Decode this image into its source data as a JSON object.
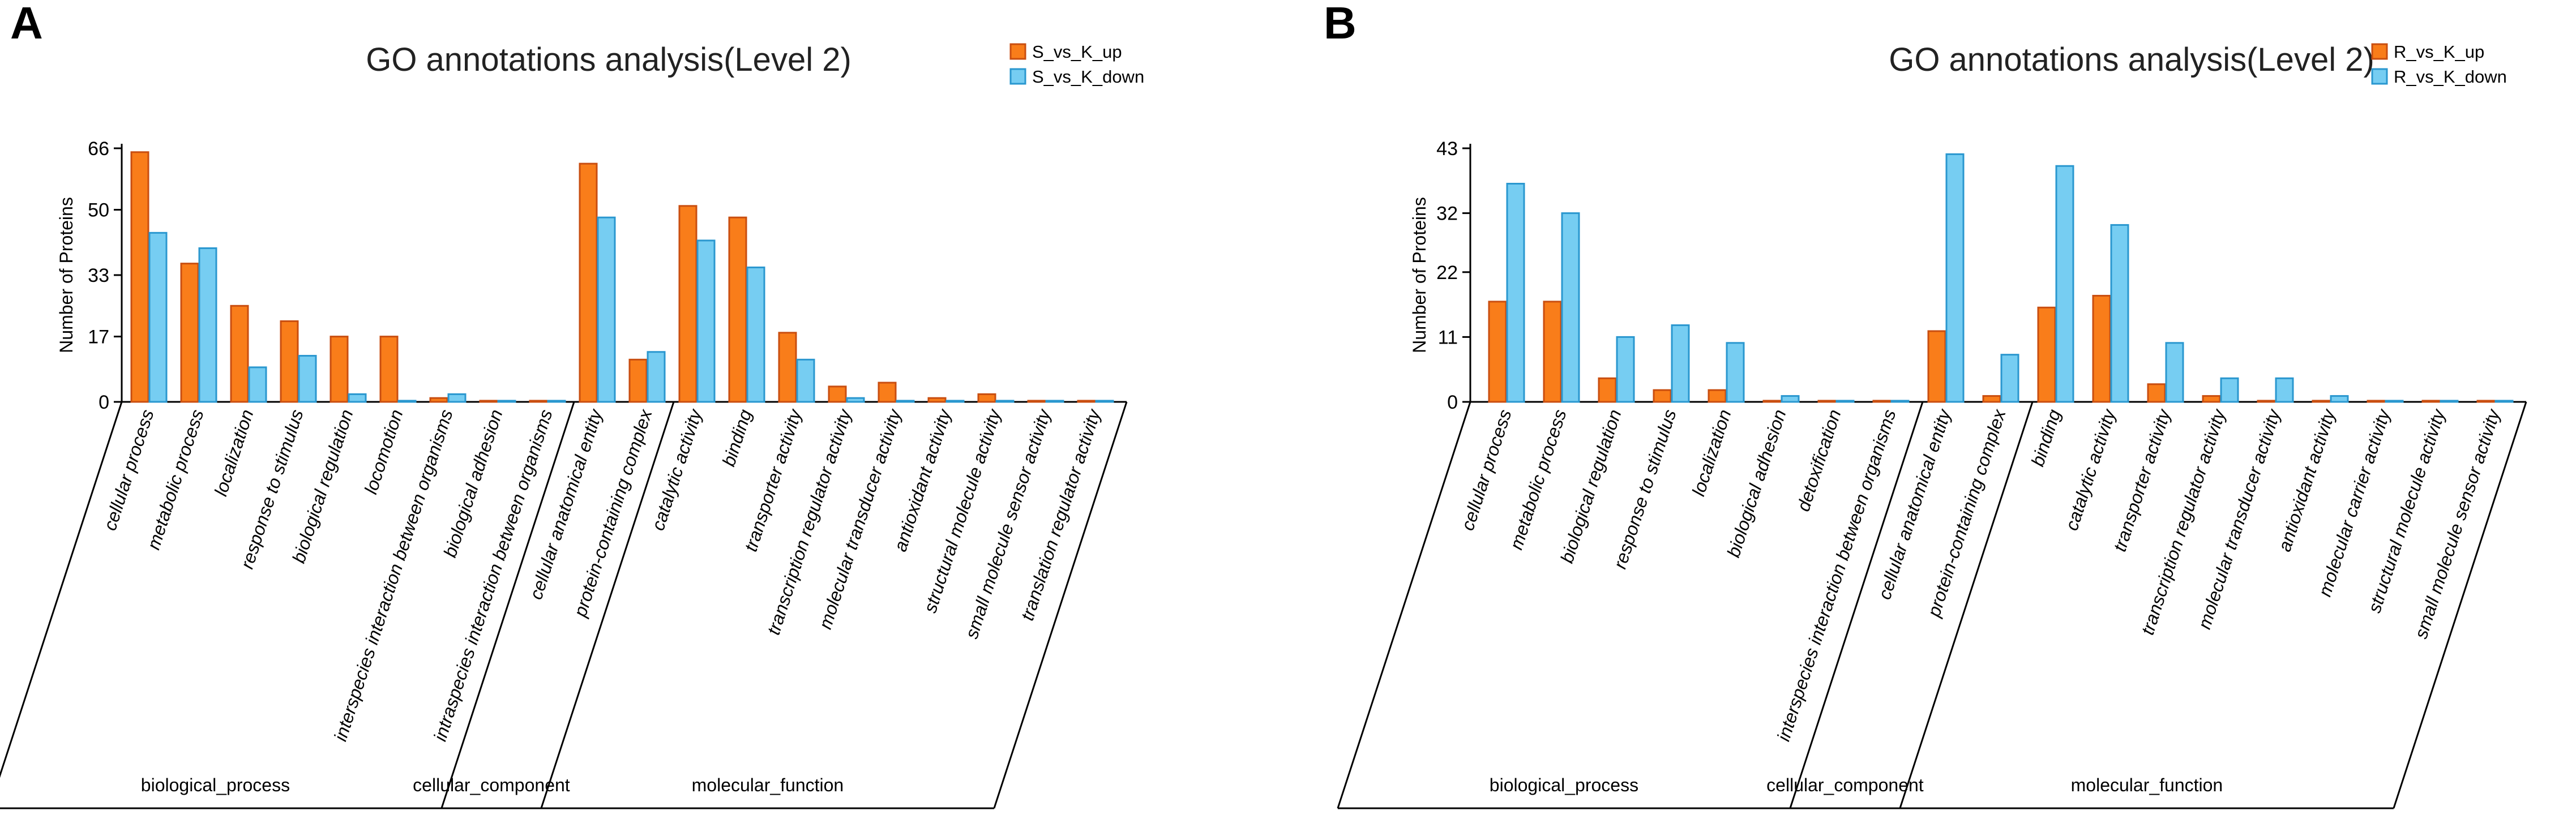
{
  "colors": {
    "up": "#f97d1a",
    "up_stroke": "#c94e10",
    "down": "#76cdf2",
    "down_stroke": "#2a97cf"
  },
  "chart_data": [
    {
      "type": "bar",
      "panel": "A",
      "title": "GO annotations analysis(Level 2)",
      "ylabel": "Number of Proteins",
      "ylim": [
        0,
        66
      ],
      "yticks": [
        0,
        17,
        33,
        50,
        66
      ],
      "series": [
        {
          "name": "S_vs_K_up",
          "values": [
            65,
            36,
            25,
            21,
            17,
            17,
            1,
            0,
            0,
            62,
            11,
            51,
            48,
            18,
            4,
            5,
            1,
            2,
            0,
            0
          ]
        },
        {
          "name": "S_vs_K_down",
          "values": [
            44,
            40,
            9,
            12,
            2,
            0,
            2,
            0,
            0,
            48,
            13,
            42,
            35,
            11,
            1,
            0,
            0,
            0,
            0,
            0
          ]
        }
      ],
      "categories": [
        "cellular process",
        "metabolic process",
        "localization",
        "response to stimulus",
        "biological regulation",
        "locomotion",
        "interspecies interaction between organisms",
        "biological adhesion",
        "intraspecies interaction between organisms",
        "cellular anatomical entity",
        "protein-containing complex",
        "catalytic activity",
        "binding",
        "transporter activity",
        "transcription regulator activity",
        "molecular transducer activity",
        "antioxidant activity",
        "structural molecule activity",
        "small molecule sensor activity",
        "translation regulator activity"
      ],
      "groups": [
        {
          "name": "biological_process",
          "count": 9
        },
        {
          "name": "cellular_component",
          "count": 2
        },
        {
          "name": "molecular_function",
          "count": 9
        }
      ]
    },
    {
      "type": "bar",
      "panel": "B",
      "title": "GO annotations analysis(Level 2)",
      "ylabel": "Number of Proteins",
      "ylim": [
        0,
        43
      ],
      "yticks": [
        0,
        11,
        22,
        32,
        43
      ],
      "series": [
        {
          "name": "R_vs_K_up",
          "values": [
            17,
            17,
            4,
            2,
            2,
            0,
            0,
            0,
            12,
            1,
            16,
            18,
            3,
            1,
            0,
            0,
            0,
            0,
            0
          ]
        },
        {
          "name": "R_vs_K_down",
          "values": [
            37,
            32,
            11,
            13,
            10,
            1,
            0,
            0,
            42,
            8,
            40,
            30,
            10,
            4,
            4,
            1,
            0,
            0,
            0
          ]
        }
      ],
      "categories": [
        "cellular process",
        "metabolic process",
        "biological regulation",
        "response to stimulus",
        "localization",
        "biological adhesion",
        "detoxification",
        "interspecies interaction between organisms",
        "cellular anatomical entity",
        "protein-containing complex",
        "binding",
        "catalytic activity",
        "transporter activity",
        "transcription regulator activity",
        "molecular transducer activity",
        "antioxidant activity",
        "molecular carrier activity",
        "structural molecule activity",
        "small molecule sensor activity"
      ],
      "groups": [
        {
          "name": "biological_process",
          "count": 8
        },
        {
          "name": "cellular_component",
          "count": 2
        },
        {
          "name": "molecular_function",
          "count": 9
        }
      ]
    }
  ]
}
